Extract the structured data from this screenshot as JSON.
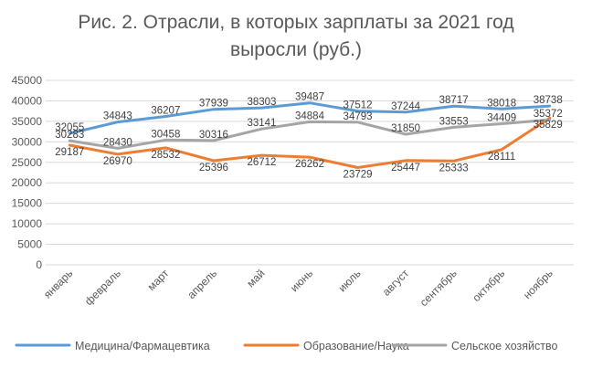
{
  "chart_data": {
    "type": "line",
    "title_line1": "Рис. 2. Отрасли, в которых зарплаты за 2021 год",
    "title_line2": "выросли (руб.)",
    "categories": [
      "январь",
      "февраль",
      "март",
      "апрель",
      "май",
      "июнь",
      "июль",
      "август",
      "сентябрь",
      "октябрь",
      "ноябрь"
    ],
    "ylim": [
      0,
      45000
    ],
    "yticks": [
      0,
      5000,
      10000,
      15000,
      20000,
      25000,
      30000,
      35000,
      40000,
      45000
    ],
    "grid": true,
    "legend_position": "bottom",
    "series": [
      {
        "name": "Медицина/Фармацевтика",
        "color": "#5B9BD5",
        "values": [
          32055,
          34843,
          36207,
          37939,
          38303,
          39487,
          37512,
          37244,
          38717,
          38018,
          38738
        ]
      },
      {
        "name": "Образование/Наука",
        "color": "#ED7D31",
        "values": [
          29187,
          26970,
          28532,
          25396,
          26712,
          26262,
          23729,
          25447,
          25333,
          28111,
          35829
        ]
      },
      {
        "name": "Сельское хозяйство",
        "color": "#A5A5A5",
        "values": [
          30283,
          28430,
          30458,
          30316,
          33141,
          34884,
          34793,
          31850,
          33553,
          34409,
          35372
        ]
      }
    ]
  }
}
